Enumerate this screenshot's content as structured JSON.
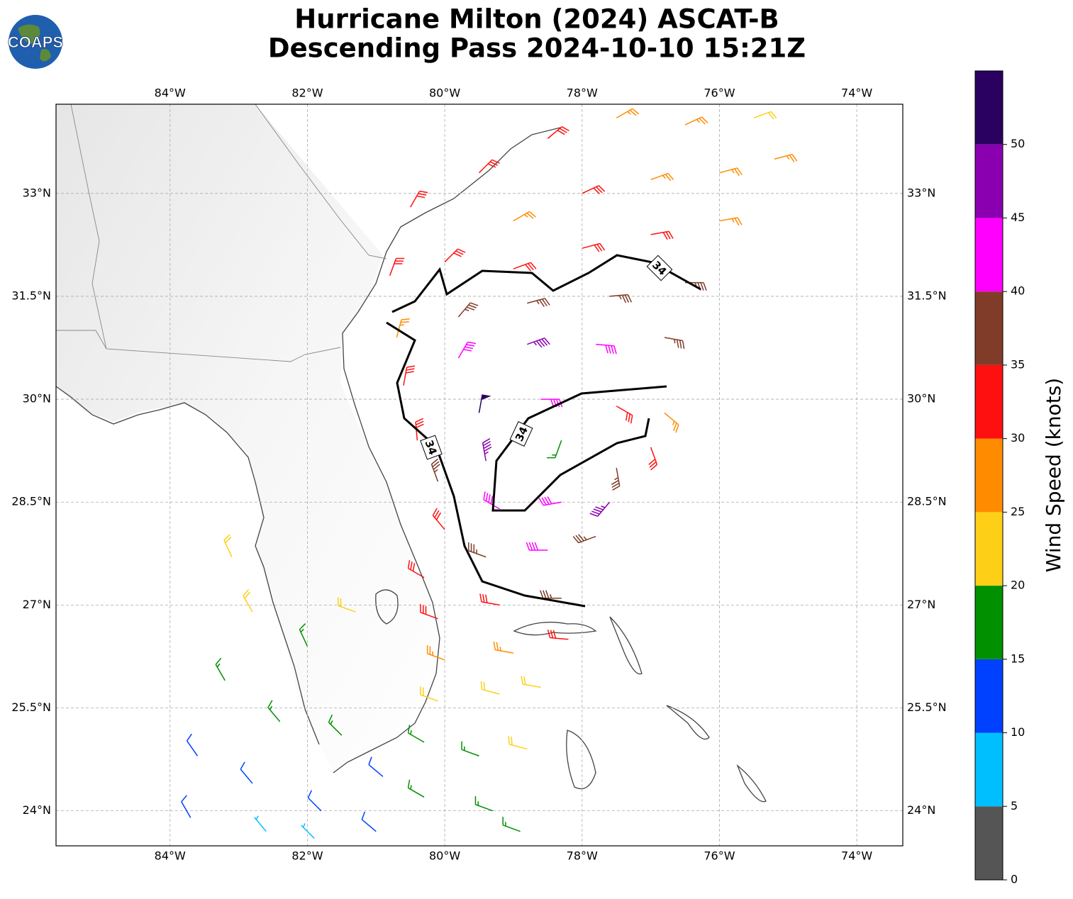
{
  "title": [
    "Hurricane Milton (2024) ASCAT-B",
    "Descending Pass 2024-10-10 15:21Z"
  ],
  "logo": "COAPS",
  "contour_label": "34",
  "map": {
    "xlim": [
      -85.66,
      -73.33
    ],
    "ylim": [
      23.49,
      34.3
    ],
    "xticks": [
      {
        "value": -84,
        "label": "84°W"
      },
      {
        "value": -82,
        "label": "82°W"
      },
      {
        "value": -80,
        "label": "80°W"
      },
      {
        "value": -78,
        "label": "78°W"
      },
      {
        "value": -76,
        "label": "76°W"
      },
      {
        "value": -74,
        "label": "74°W"
      }
    ],
    "yticks": [
      {
        "value": 24,
        "label": "24°N"
      },
      {
        "value": 25.5,
        "label": "25.5°N"
      },
      {
        "value": 27,
        "label": "27°N"
      },
      {
        "value": 28.5,
        "label": "28.5°N"
      },
      {
        "value": 30,
        "label": "30°N"
      },
      {
        "value": 31.5,
        "label": "31.5°N"
      },
      {
        "value": 33,
        "label": "33°N"
      }
    ],
    "grid": true
  },
  "colorbar": {
    "label": "Wind Speed (knots)",
    "lim": [
      0,
      55
    ],
    "bounds": [
      0,
      5,
      10,
      15,
      20,
      25,
      30,
      35,
      40,
      45,
      50,
      55
    ],
    "colors": [
      "#555555",
      "#00bfff",
      "#0040ff",
      "#009000",
      "#fdd017",
      "#ff8c00",
      "#ff1010",
      "#803c28",
      "#ff00ff",
      "#8a00b0",
      "#2a0060"
    ],
    "ticks": [
      0,
      5,
      10,
      15,
      20,
      25,
      30,
      35,
      40,
      45,
      50
    ]
  },
  "wind_barbs": {
    "fields": [
      "lon",
      "lat",
      "speed_kt",
      "direction_from_deg"
    ],
    "points": [
      [
        -80.5,
        32.8,
        32,
        30
      ],
      [
        -79.5,
        33.3,
        33,
        45
      ],
      [
        -78.5,
        33.8,
        32,
        50
      ],
      [
        -77.5,
        34.1,
        28,
        60
      ],
      [
        -76.5,
        34.0,
        27,
        65
      ],
      [
        -75.5,
        34.1,
        22,
        70
      ],
      [
        -79.0,
        32.6,
        28,
        60
      ],
      [
        -78.0,
        33.0,
        30,
        65
      ],
      [
        -77.0,
        33.2,
        28,
        70
      ],
      [
        -76.0,
        33.3,
        27,
        75
      ],
      [
        -75.2,
        33.5,
        25,
        75
      ],
      [
        -80.8,
        31.8,
        31,
        20
      ],
      [
        -80.0,
        32.0,
        33,
        45
      ],
      [
        -79.0,
        31.9,
        32,
        70
      ],
      [
        -78.0,
        32.2,
        33,
        75
      ],
      [
        -77.0,
        32.4,
        31,
        80
      ],
      [
        -76.0,
        32.6,
        28,
        80
      ],
      [
        -80.7,
        30.9,
        27,
        15
      ],
      [
        -79.8,
        31.2,
        36,
        40
      ],
      [
        -78.8,
        31.4,
        37,
        75
      ],
      [
        -77.6,
        31.5,
        37,
        85
      ],
      [
        -76.5,
        31.7,
        36,
        90
      ],
      [
        -80.6,
        30.2,
        31,
        10
      ],
      [
        -79.8,
        30.6,
        42,
        30
      ],
      [
        -78.8,
        30.8,
        47,
        70
      ],
      [
        -77.8,
        30.8,
        44,
        95
      ],
      [
        -76.8,
        30.9,
        36,
        100
      ],
      [
        -80.4,
        29.4,
        32,
        355
      ],
      [
        -79.5,
        29.8,
        52,
        10
      ],
      [
        -78.6,
        30.0,
        42,
        90
      ],
      [
        -77.5,
        29.9,
        30,
        120
      ],
      [
        -76.8,
        29.8,
        28,
        130
      ],
      [
        -80.1,
        28.8,
        36,
        340
      ],
      [
        -79.4,
        29.1,
        46,
        350
      ],
      [
        -78.3,
        29.4,
        17,
        200
      ],
      [
        -77.5,
        29.0,
        37,
        170
      ],
      [
        -77.0,
        29.3,
        33,
        160
      ],
      [
        -80.0,
        28.1,
        34,
        320
      ],
      [
        -79.2,
        28.4,
        40,
        300
      ],
      [
        -78.3,
        28.5,
        44,
        260
      ],
      [
        -77.6,
        28.5,
        46,
        220
      ],
      [
        -80.3,
        27.4,
        32,
        300
      ],
      [
        -79.4,
        27.7,
        36,
        290
      ],
      [
        -78.5,
        27.8,
        42,
        270
      ],
      [
        -77.8,
        28.0,
        38,
        250
      ],
      [
        -80.1,
        26.8,
        30,
        290
      ],
      [
        -79.2,
        27.0,
        33,
        280
      ],
      [
        -78.3,
        27.1,
        35,
        270
      ],
      [
        -80.0,
        26.2,
        26,
        290
      ],
      [
        -79.0,
        26.3,
        27,
        280
      ],
      [
        -78.2,
        26.5,
        30,
        275
      ],
      [
        -80.1,
        25.6,
        22,
        290
      ],
      [
        -79.2,
        25.7,
        23,
        285
      ],
      [
        -78.6,
        25.8,
        22,
        280
      ],
      [
        -80.3,
        25.0,
        19,
        300
      ],
      [
        -79.5,
        24.8,
        18,
        290
      ],
      [
        -78.8,
        24.9,
        20,
        285
      ],
      [
        -80.3,
        24.2,
        16,
        300
      ],
      [
        -79.3,
        24.0,
        17,
        290
      ],
      [
        -78.9,
        23.7,
        16,
        290
      ],
      [
        -82.8,
        26.9,
        21,
        330
      ],
      [
        -82.0,
        26.4,
        17,
        335
      ],
      [
        -83.2,
        25.9,
        17,
        330
      ],
      [
        -82.4,
        25.3,
        16,
        320
      ],
      [
        -81.5,
        25.1,
        17,
        315
      ],
      [
        -80.9,
        24.5,
        14,
        310
      ],
      [
        -83.6,
        24.8,
        13,
        325
      ],
      [
        -82.8,
        24.4,
        12,
        320
      ],
      [
        -81.8,
        24.0,
        13,
        315
      ],
      [
        -81.0,
        23.7,
        11,
        310
      ],
      [
        -83.7,
        23.9,
        11,
        330
      ],
      [
        -82.6,
        23.7,
        8,
        320
      ],
      [
        -81.9,
        23.6,
        7,
        315
      ],
      [
        -81.3,
        26.9,
        23,
        290
      ],
      [
        -83.1,
        27.7,
        22,
        335
      ]
    ]
  }
}
